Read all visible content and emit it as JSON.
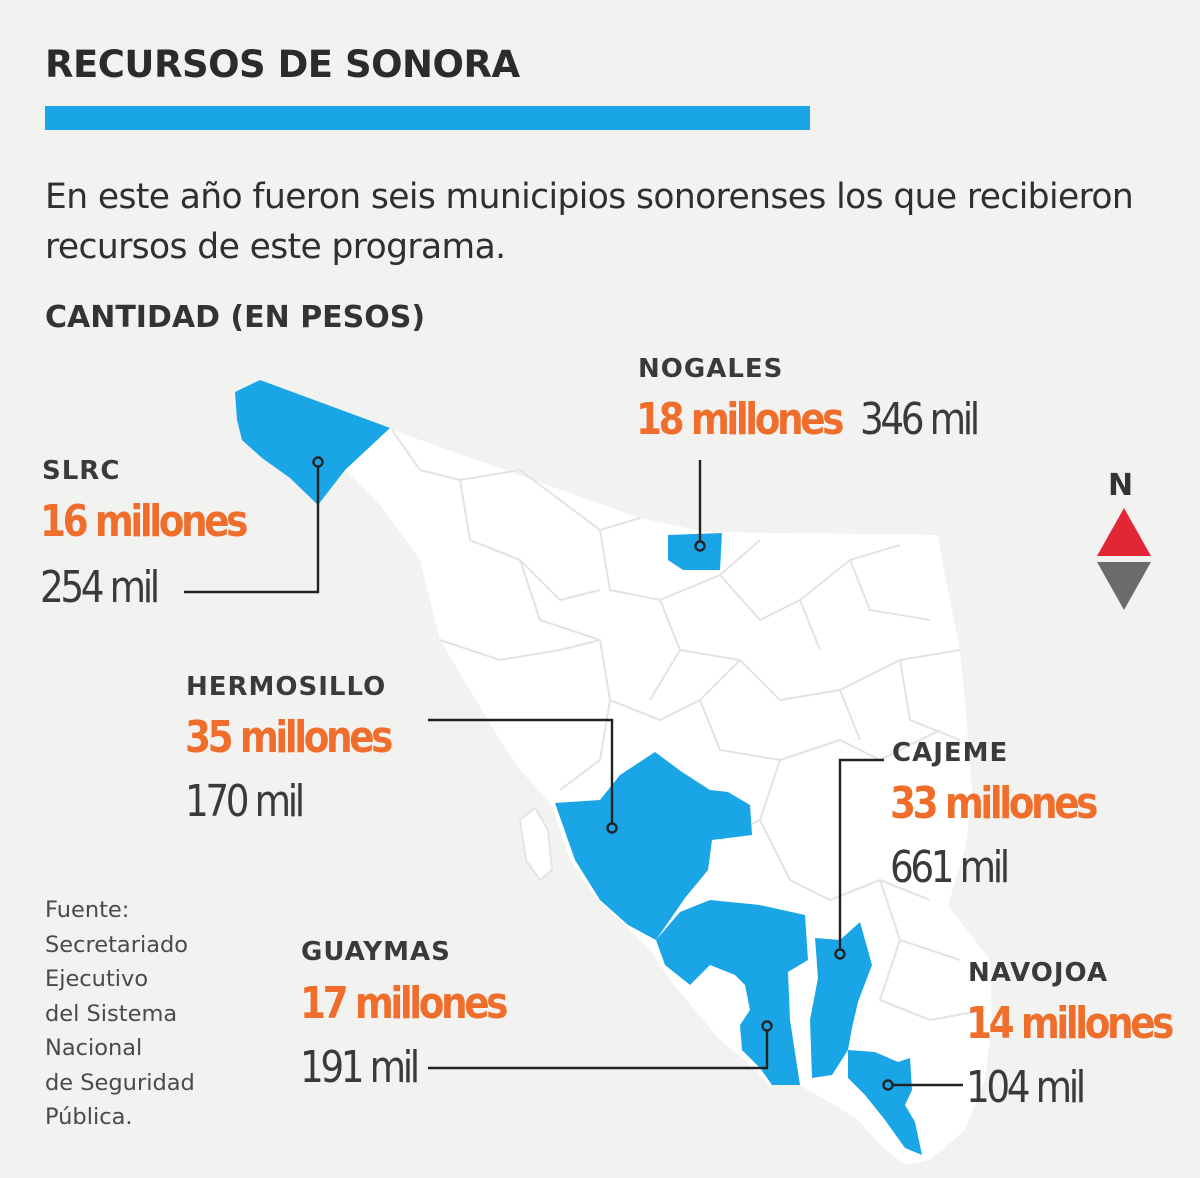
{
  "header": {
    "title": "RECURSOS DE SONORA",
    "intro": "En este año fueron seis municipios sonorenses los que recibieron recursos de este programa.",
    "unit_label": "CANTIDAD (EN PESOS)"
  },
  "compass": {
    "label": "N"
  },
  "colors": {
    "accent_bar": "#1aa6e6",
    "highlighted_municipality": "#1aa6e6",
    "amount_text": "#ef6e2c",
    "compass_north": "#e32636",
    "compass_south": "#6b6b6b",
    "state_fill": "#ffffff",
    "background": "#f2f2f1"
  },
  "municipalities": {
    "slrc": {
      "name": "SLRC",
      "amount_main": "16 millones",
      "amount_rest": "254 mil"
    },
    "nogales": {
      "name": "NOGALES",
      "amount_main": "18 millones",
      "amount_rest": "346 mil"
    },
    "hermosillo": {
      "name": "HERMOSILLO",
      "amount_main": "35 millones",
      "amount_rest": "170 mil"
    },
    "cajeme": {
      "name": "CAJEME",
      "amount_main": "33 millones",
      "amount_rest": "661 mil"
    },
    "guaymas": {
      "name": "GUAYMAS",
      "amount_main": "17 millones",
      "amount_rest": "191 mil"
    },
    "navojoa": {
      "name": "NAVOJOA",
      "amount_main": "14 millones",
      "amount_rest": "104 mil"
    }
  },
  "source": {
    "lines": [
      "Fuente:",
      "Secretariado",
      "Ejecutivo",
      "del Sistema",
      "Nacional",
      "de Seguridad",
      "Pública."
    ]
  }
}
